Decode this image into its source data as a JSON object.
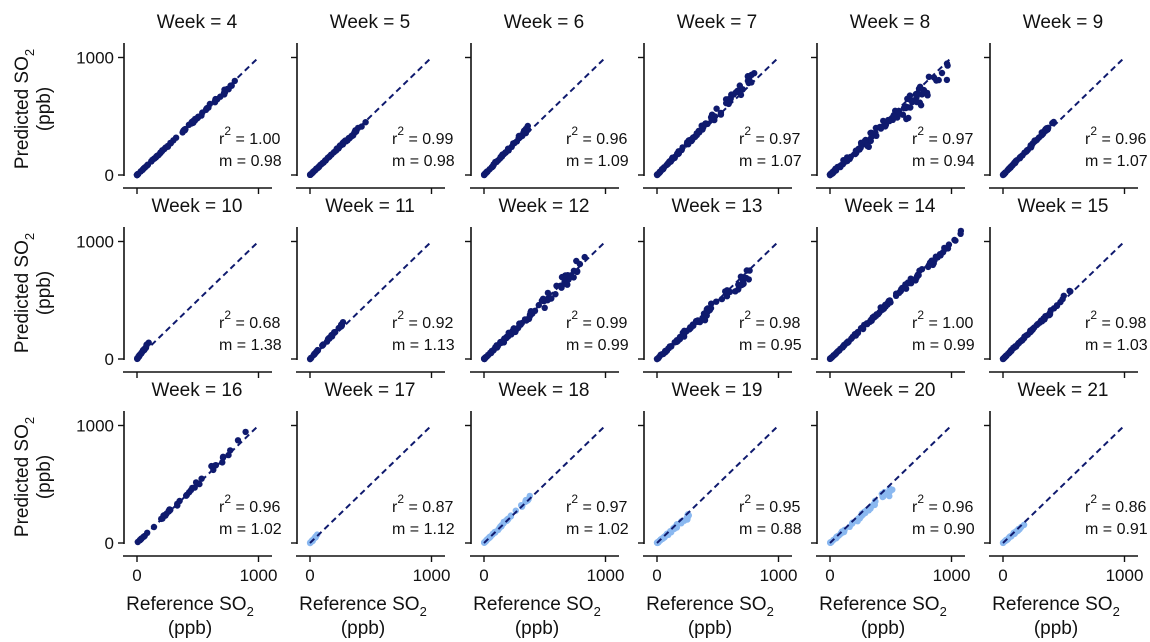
{
  "chart_data": {
    "type": "scatter",
    "layout": "facet-grid",
    "rows": 3,
    "cols": 6,
    "xlim": [
      0,
      1000
    ],
    "ylim": [
      0,
      1000
    ],
    "xticks": [
      0,
      1000
    ],
    "yticks": [
      0,
      1000
    ],
    "xlabel": {
      "main": "Reference SO",
      "sub": "2",
      "unit": "(ppb)"
    },
    "ylabel": {
      "main": "Predicted SO",
      "sub": "2",
      "unit": "(ppb)"
    },
    "stat_labels": {
      "r": "r",
      "r_exp": "2",
      "m": "m"
    },
    "colors": {
      "dark": "#0f1a6e",
      "light": "#8ab8f0",
      "line": "#0f1a6e"
    },
    "panels": [
      {
        "title": "Week = 4",
        "r2": "1.00",
        "m": "0.98",
        "xmax": 820,
        "noise": 0.02,
        "color": "dark",
        "n": 90
      },
      {
        "title": "Week = 5",
        "r2": "0.99",
        "m": "0.98",
        "xmax": 470,
        "noise": 0.03,
        "color": "dark",
        "n": 70
      },
      {
        "title": "Week = 6",
        "r2": "0.96",
        "m": "1.09",
        "xmax": 380,
        "noise": 0.05,
        "color": "dark",
        "n": 65
      },
      {
        "title": "Week = 7",
        "r2": "0.97",
        "m": "1.07",
        "xmax": 800,
        "noise": 0.07,
        "color": "dark",
        "n": 110
      },
      {
        "title": "Week = 8",
        "r2": "0.97",
        "m": "0.94",
        "xmax": 1010,
        "noise": 0.14,
        "color": "dark",
        "n": 110
      },
      {
        "title": "Week = 9",
        "r2": "0.96",
        "m": "1.07",
        "xmax": 420,
        "noise": 0.05,
        "color": "dark",
        "n": 65
      },
      {
        "title": "Week = 10",
        "r2": "0.68",
        "m": "1.38",
        "xmax": 110,
        "noise": 0.1,
        "color": "dark",
        "n": 25
      },
      {
        "title": "Week = 11",
        "r2": "0.92",
        "m": "1.13",
        "xmax": 280,
        "noise": 0.06,
        "color": "dark",
        "n": 35
      },
      {
        "title": "Week = 12",
        "r2": "0.99",
        "m": "0.99",
        "xmax": 830,
        "noise": 0.08,
        "color": "dark",
        "n": 110
      },
      {
        "title": "Week = 13",
        "r2": "0.98",
        "m": "0.95",
        "xmax": 780,
        "noise": 0.1,
        "color": "dark",
        "n": 75
      },
      {
        "title": "Week = 14",
        "r2": "1.00",
        "m": "0.99",
        "xmax": 1080,
        "noise": 0.04,
        "color": "dark",
        "n": 130
      },
      {
        "title": "Week = 15",
        "r2": "0.98",
        "m": "1.03",
        "xmax": 560,
        "noise": 0.04,
        "color": "dark",
        "n": 80
      },
      {
        "title": "Week = 16",
        "r2": "0.96",
        "m": "1.02",
        "xmax": 920,
        "noise": 0.05,
        "color": "dark",
        "n": 45
      },
      {
        "title": "Week = 17",
        "r2": "0.87",
        "m": "1.12",
        "xmax": 70,
        "noise": 0.1,
        "color": "light",
        "n": 15
      },
      {
        "title": "Week = 18",
        "r2": "0.97",
        "m": "1.02",
        "xmax": 390,
        "noise": 0.06,
        "color": "light",
        "n": 60
      },
      {
        "title": "Week = 19",
        "r2": "0.95",
        "m": "0.88",
        "xmax": 270,
        "noise": 0.07,
        "color": "light",
        "n": 55
      },
      {
        "title": "Week = 20",
        "r2": "0.96",
        "m": "0.90",
        "xmax": 520,
        "noise": 0.08,
        "color": "light",
        "n": 60
      },
      {
        "title": "Week = 21",
        "r2": "0.86",
        "m": "0.91",
        "xmax": 190,
        "noise": 0.08,
        "color": "light",
        "n": 30
      }
    ]
  }
}
